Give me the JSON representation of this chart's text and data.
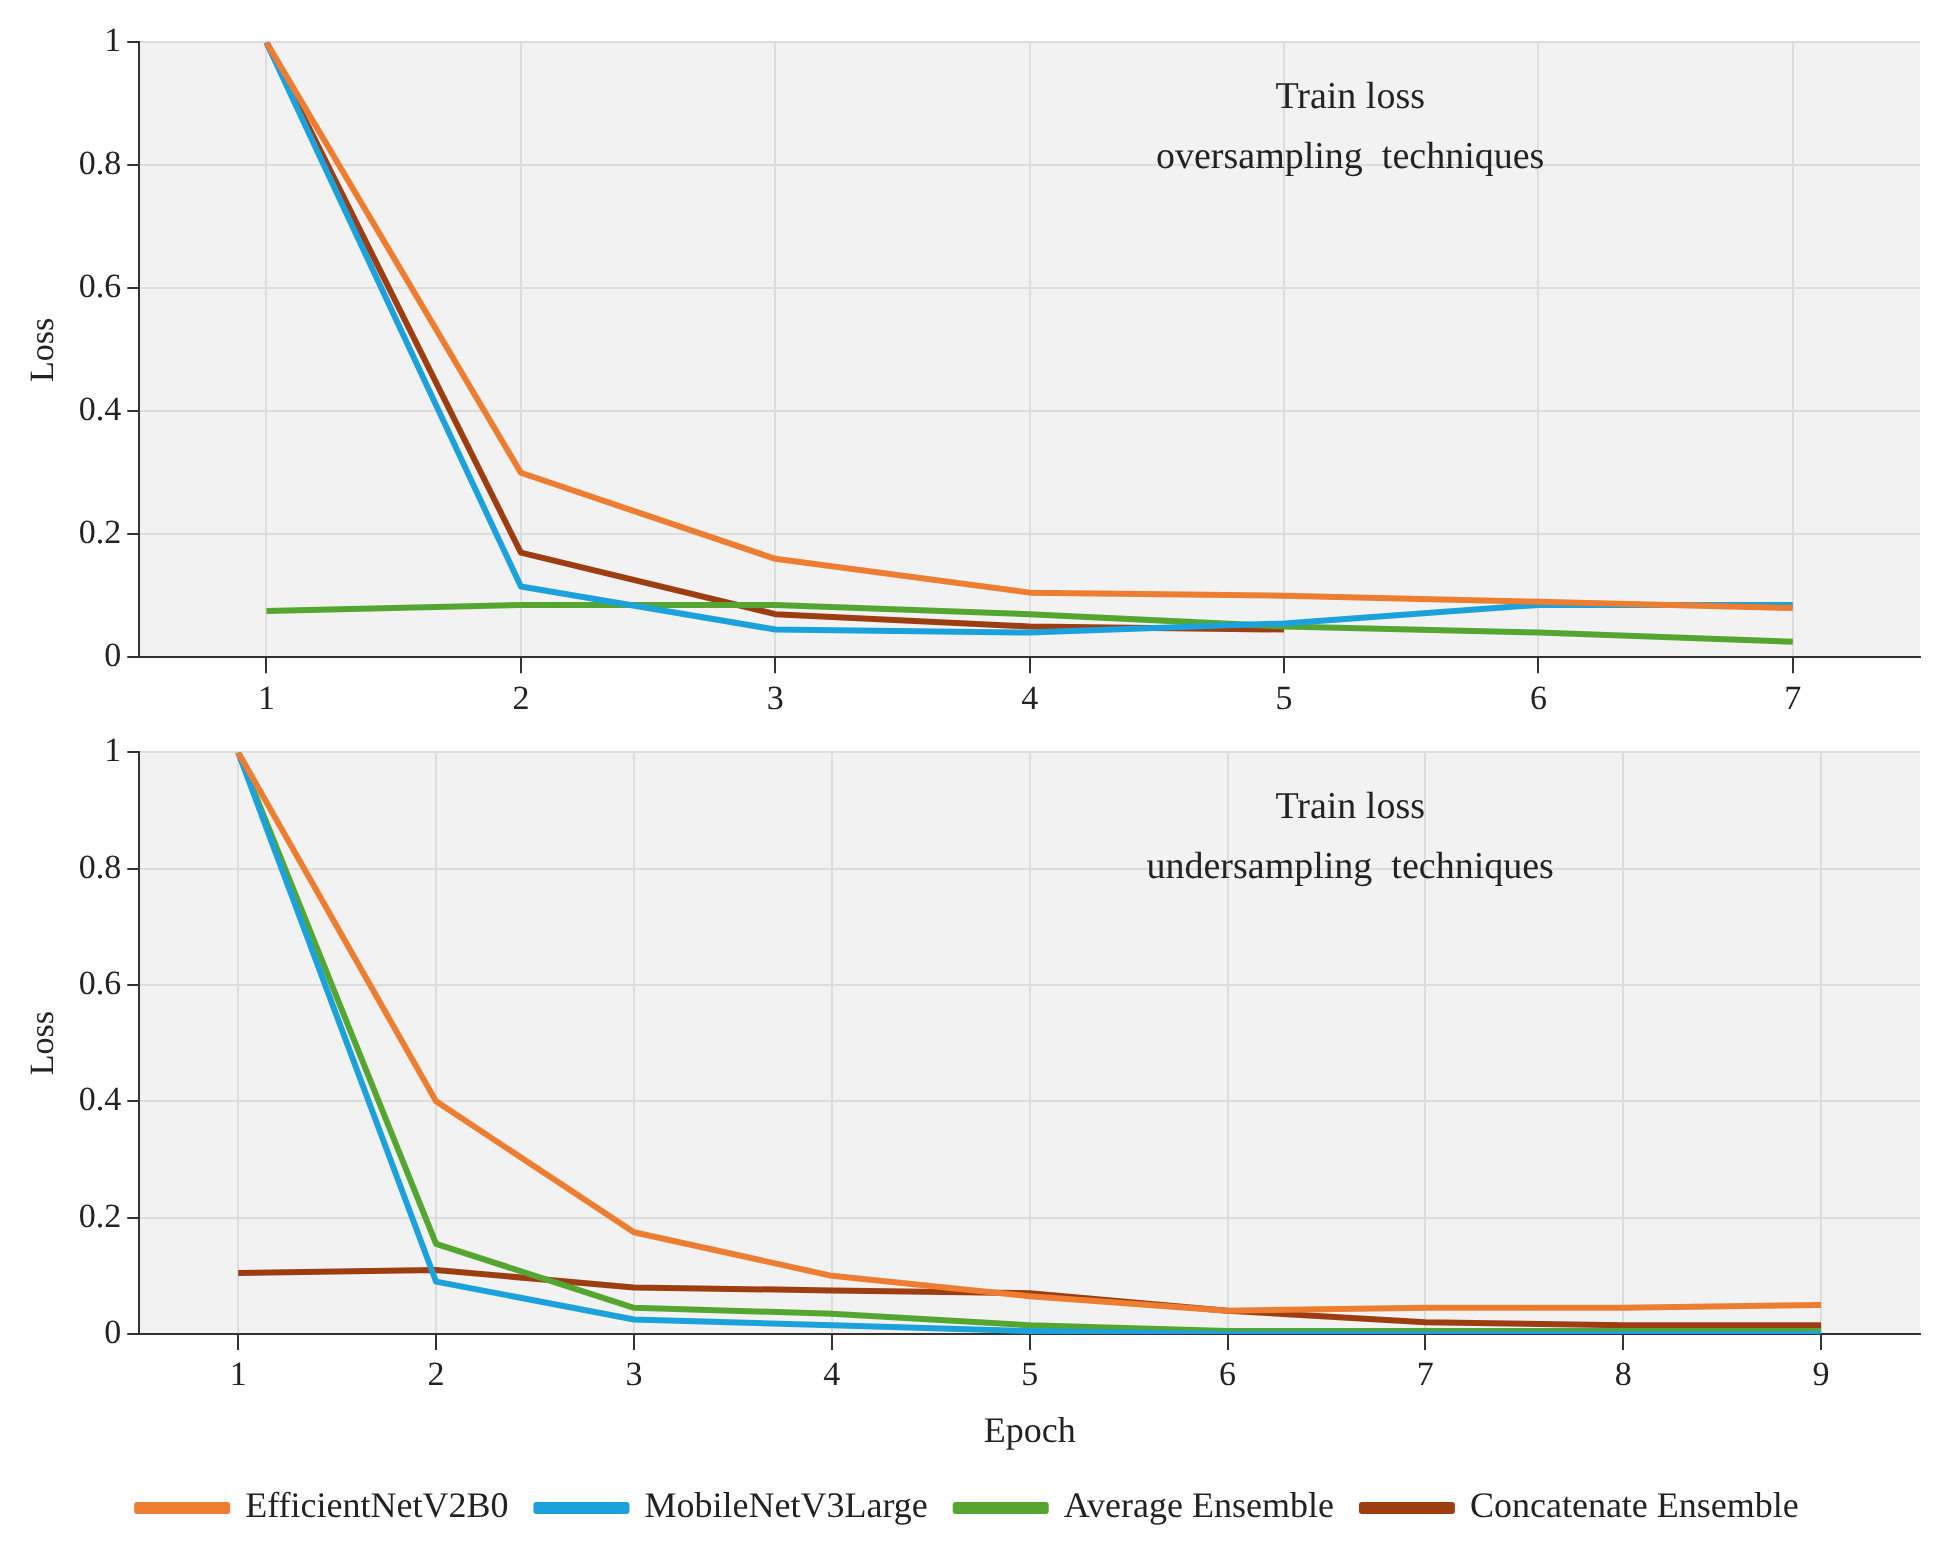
{
  "chart_data": [
    {
      "type": "line",
      "annotations": [
        "Train loss",
        "oversampling  techniques"
      ],
      "ylabel": "Loss",
      "categories": [
        "1",
        "2",
        "3",
        "4",
        "5",
        "6",
        "7"
      ],
      "ylim": [
        0,
        1
      ],
      "yticks": [
        0,
        0.2,
        0.4,
        0.6,
        0.8,
        1
      ],
      "grid": true,
      "legend": false,
      "marker": "none",
      "line_style": "solid",
      "series": [
        {
          "color": "#ed7d31",
          "values": [
            1,
            0.3,
            0.16,
            0.105,
            0.1,
            0.09,
            0.08
          ]
        },
        {
          "color": "#1ba1dc",
          "values": [
            1,
            0.115,
            0.045,
            0.04,
            0.055,
            0.085,
            0.085
          ]
        },
        {
          "color": "#55a630",
          "values": [
            0.075,
            0.085,
            0.085,
            0.07,
            0.05,
            0.04,
            0.025
          ]
        },
        {
          "color": "#9c3d12",
          "values": [
            1,
            0.17,
            0.07,
            0.05,
            0.045,
            null,
            null
          ]
        }
      ]
    },
    {
      "type": "line",
      "annotations": [
        "Train loss",
        "undersampling  techniques"
      ],
      "xlabel": "Epoch",
      "ylabel": "Loss",
      "categories": [
        "1",
        "2",
        "3",
        "4",
        "5",
        "6",
        "7",
        "8",
        "9"
      ],
      "ylim": [
        0,
        1
      ],
      "yticks": [
        0,
        0.2,
        0.4,
        0.6,
        0.8,
        1
      ],
      "grid": true,
      "legend": "bottom",
      "marker": "none",
      "line_style": "solid",
      "series": [
        {
          "name": "EfficientNetV2B0",
          "color": "#ed7d31",
          "values": [
            1,
            0.4,
            0.175,
            0.1,
            0.065,
            0.04,
            0.045,
            0.045,
            0.05
          ]
        },
        {
          "name": "MobileNetV3Large",
          "color": "#1ba1dc",
          "values": [
            1,
            0.09,
            0.025,
            0.015,
            0.005,
            0,
            0,
            0,
            0
          ]
        },
        {
          "name": "Average Ensemble",
          "color": "#55a630",
          "values": [
            1,
            0.155,
            0.045,
            0.035,
            0.015,
            0.005,
            0.005,
            0.005,
            0.005
          ]
        },
        {
          "name": "Concatenate Ensemble",
          "color": "#9c3d12",
          "values": [
            0.105,
            0.11,
            0.08,
            0.075,
            0.07,
            0.04,
            0.02,
            0.015,
            0.015
          ]
        }
      ]
    }
  ]
}
